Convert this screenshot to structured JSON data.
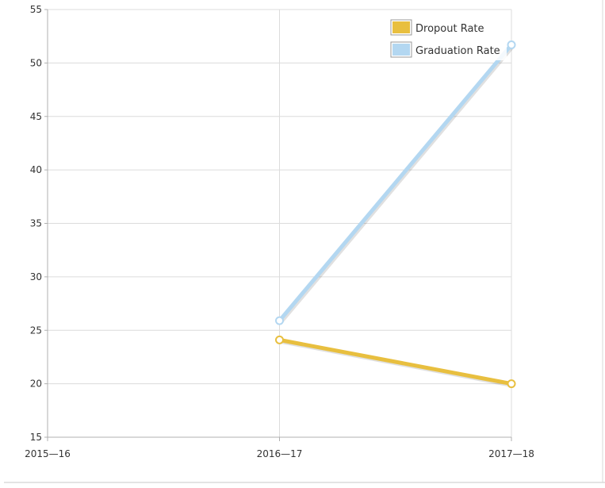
{
  "chart_data": {
    "type": "line",
    "categories": [
      "2015—16",
      "2016—17",
      "2017—18"
    ],
    "series": [
      {
        "name": "Dropout Rate",
        "color": "#e8bf3f",
        "values": [
          null,
          24.1,
          20.0
        ]
      },
      {
        "name": "Graduation Rate",
        "color": "#b3d7f1",
        "values": [
          null,
          25.9,
          51.7
        ]
      }
    ],
    "y_ticks": [
      "15",
      "20",
      "25",
      "30",
      "35",
      "40",
      "45",
      "50",
      "55"
    ],
    "ylim": [
      15,
      55
    ],
    "grid": true,
    "legend_position": "top-right"
  }
}
